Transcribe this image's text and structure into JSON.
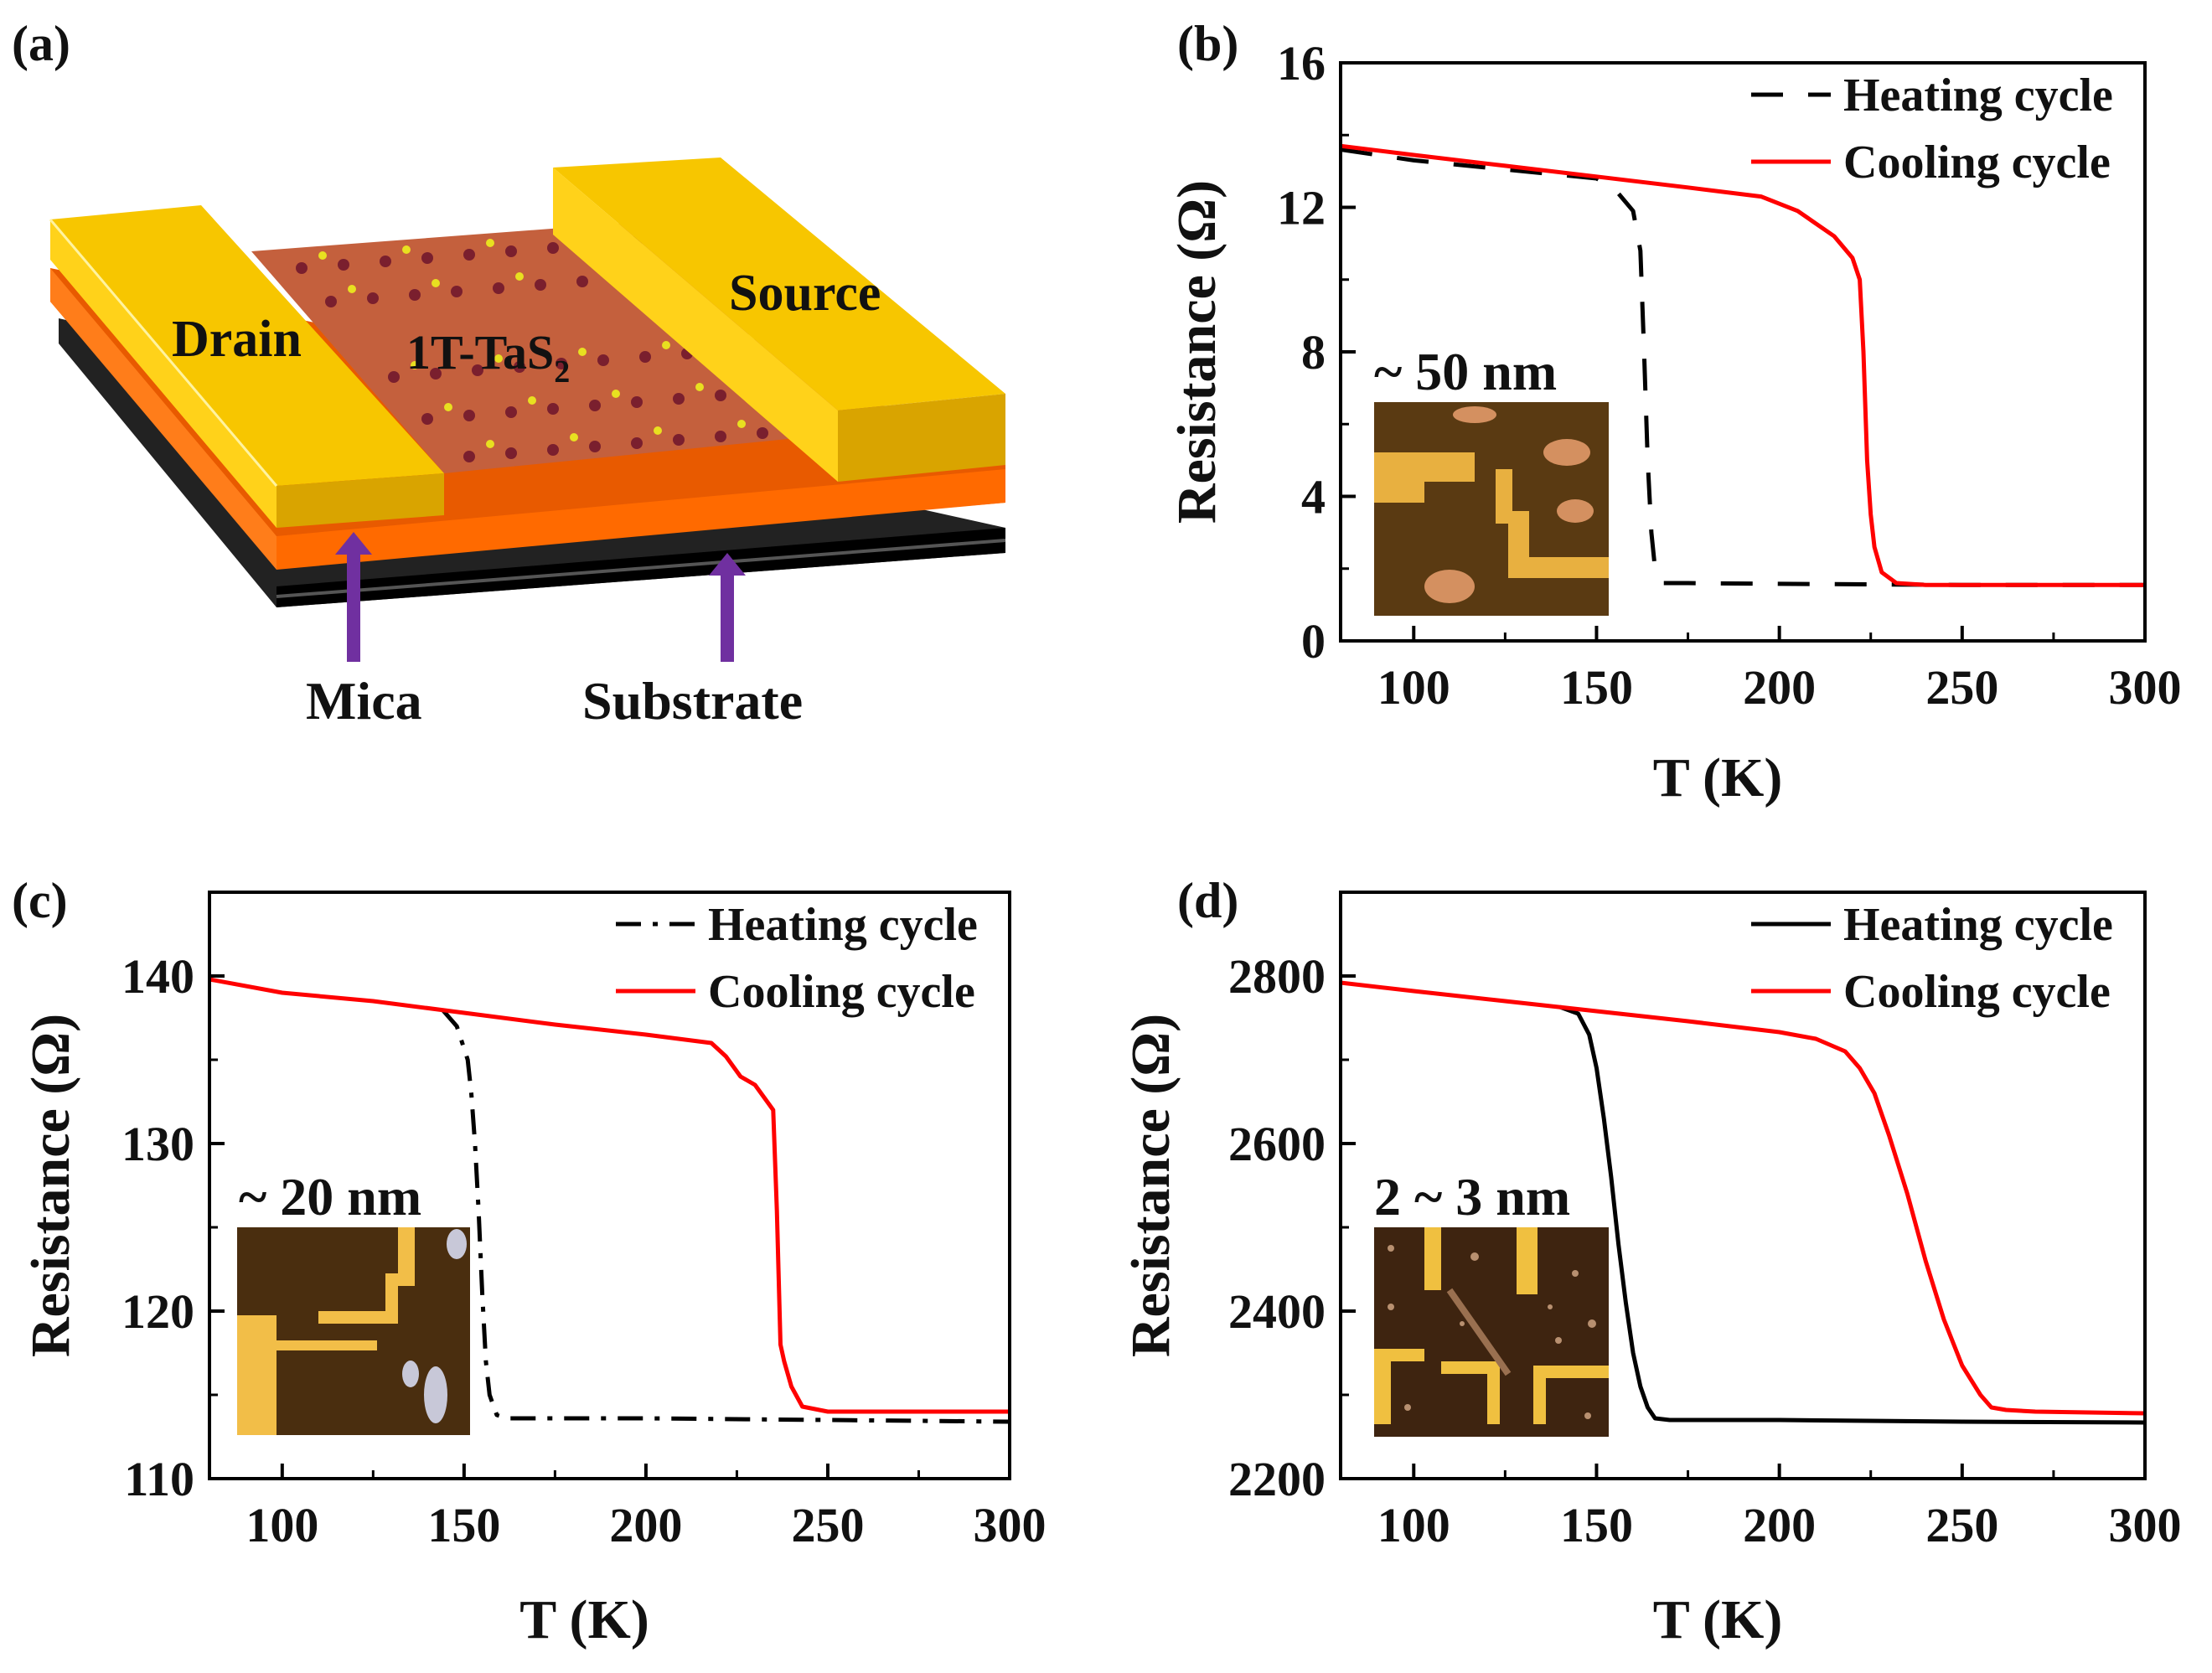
{
  "panel_a": {
    "label": "(a)",
    "drain": "Drain",
    "source": "Source",
    "material": "1T-TaS",
    "material_sub": "2",
    "mica": "Mica",
    "substrate": "Substrate",
    "colors": {
      "gold": "#f2b800",
      "orange": "#ff6a00",
      "flake": "#c4603d",
      "arrow": "#7030a0"
    }
  },
  "chart_data": [
    {
      "panel": "(b)",
      "type": "line",
      "xlabel": "T (K)",
      "ylabel": "Resistance (Ω)",
      "xlim": [
        80,
        300
      ],
      "ylim": [
        0,
        16
      ],
      "xticks": [
        100,
        150,
        200,
        250,
        300
      ],
      "yticks": [
        0,
        4,
        8,
        12,
        16
      ],
      "inset_label": "~ 50 nm",
      "legend_position": "top-right",
      "series": [
        {
          "name": "Heating cycle",
          "style": "dashed",
          "color": "#000000",
          "x": [
            80,
            100,
            120,
            140,
            150,
            155,
            160,
            162,
            163,
            164,
            165,
            166,
            168,
            175,
            200,
            250,
            300
          ],
          "y": [
            13.6,
            13.3,
            13.1,
            12.9,
            12.8,
            12.5,
            11.9,
            10.8,
            8.0,
            5.0,
            3.0,
            2.0,
            1.6,
            1.6,
            1.58,
            1.55,
            1.55
          ]
        },
        {
          "name": "Cooling cycle",
          "style": "solid",
          "color": "#ff0000",
          "x": [
            80,
            100,
            125,
            150,
            175,
            195,
            205,
            215,
            220,
            222,
            223,
            224,
            225,
            226,
            228,
            232,
            240,
            260,
            300
          ],
          "y": [
            13.7,
            13.45,
            13.15,
            12.85,
            12.55,
            12.3,
            11.9,
            11.2,
            10.6,
            10.0,
            8.0,
            5.0,
            3.5,
            2.6,
            1.9,
            1.6,
            1.55,
            1.55,
            1.55
          ]
        }
      ]
    },
    {
      "panel": "(c)",
      "type": "line",
      "xlabel": "T (K)",
      "ylabel": "Resistance (Ω)",
      "xlim": [
        80,
        300
      ],
      "ylim": [
        110,
        145
      ],
      "xticks": [
        100,
        150,
        200,
        250,
        300
      ],
      "yticks": [
        110,
        120,
        130,
        140
      ],
      "inset_label": "~ 20 nm",
      "legend_position": "top-right",
      "series": [
        {
          "name": "Heating cycle",
          "style": "dashdot",
          "color": "#000000",
          "x": [
            144,
            148,
            151,
            152,
            153,
            154,
            155,
            156,
            157,
            159,
            162,
            200,
            250,
            300
          ],
          "y": [
            138.0,
            137.0,
            135.0,
            133.0,
            130.0,
            126.0,
            121.0,
            117.0,
            115.0,
            113.8,
            113.6,
            113.6,
            113.5,
            113.4
          ]
        },
        {
          "name": "Cooling cycle",
          "style": "solid",
          "color": "#ff0000",
          "x": [
            80,
            100,
            125,
            150,
            175,
            200,
            218,
            222,
            226,
            230,
            234,
            235,
            236,
            237,
            238,
            240,
            243,
            250,
            300
          ],
          "y": [
            139.8,
            139.0,
            138.5,
            137.8,
            137.1,
            136.5,
            136.0,
            135.2,
            134.0,
            133.5,
            132.3,
            132.0,
            126.0,
            118.0,
            117.0,
            115.5,
            114.3,
            114.0,
            114.0
          ]
        }
      ]
    },
    {
      "panel": "(d)",
      "type": "line",
      "xlabel": "T (K)",
      "ylabel": "Resistance (Ω)",
      "xlim": [
        80,
        300
      ],
      "ylim": [
        2200,
        2900
      ],
      "xticks": [
        100,
        150,
        200,
        250,
        300
      ],
      "yticks": [
        2200,
        2400,
        2600,
        2800
      ],
      "inset_label": "2 ~ 3 nm",
      "legend_position": "top-right",
      "series": [
        {
          "name": "Heating cycle",
          "style": "solid",
          "color": "#000000",
          "x": [
            140,
            145,
            148,
            150,
            152,
            154,
            156,
            158,
            160,
            162,
            164,
            166,
            170,
            200,
            250,
            300
          ],
          "y": [
            2763,
            2755,
            2730,
            2690,
            2630,
            2560,
            2480,
            2410,
            2350,
            2310,
            2285,
            2272,
            2270,
            2270,
            2268,
            2267
          ]
        },
        {
          "name": "Cooling cycle",
          "style": "solid",
          "color": "#ff0000",
          "x": [
            80,
            100,
            125,
            150,
            175,
            200,
            210,
            218,
            222,
            226,
            230,
            235,
            240,
            245,
            250,
            255,
            258,
            262,
            270,
            300
          ],
          "y": [
            2792,
            2782,
            2770,
            2758,
            2746,
            2733,
            2725,
            2710,
            2690,
            2660,
            2610,
            2540,
            2460,
            2390,
            2335,
            2300,
            2285,
            2282,
            2280,
            2278
          ]
        }
      ]
    }
  ]
}
